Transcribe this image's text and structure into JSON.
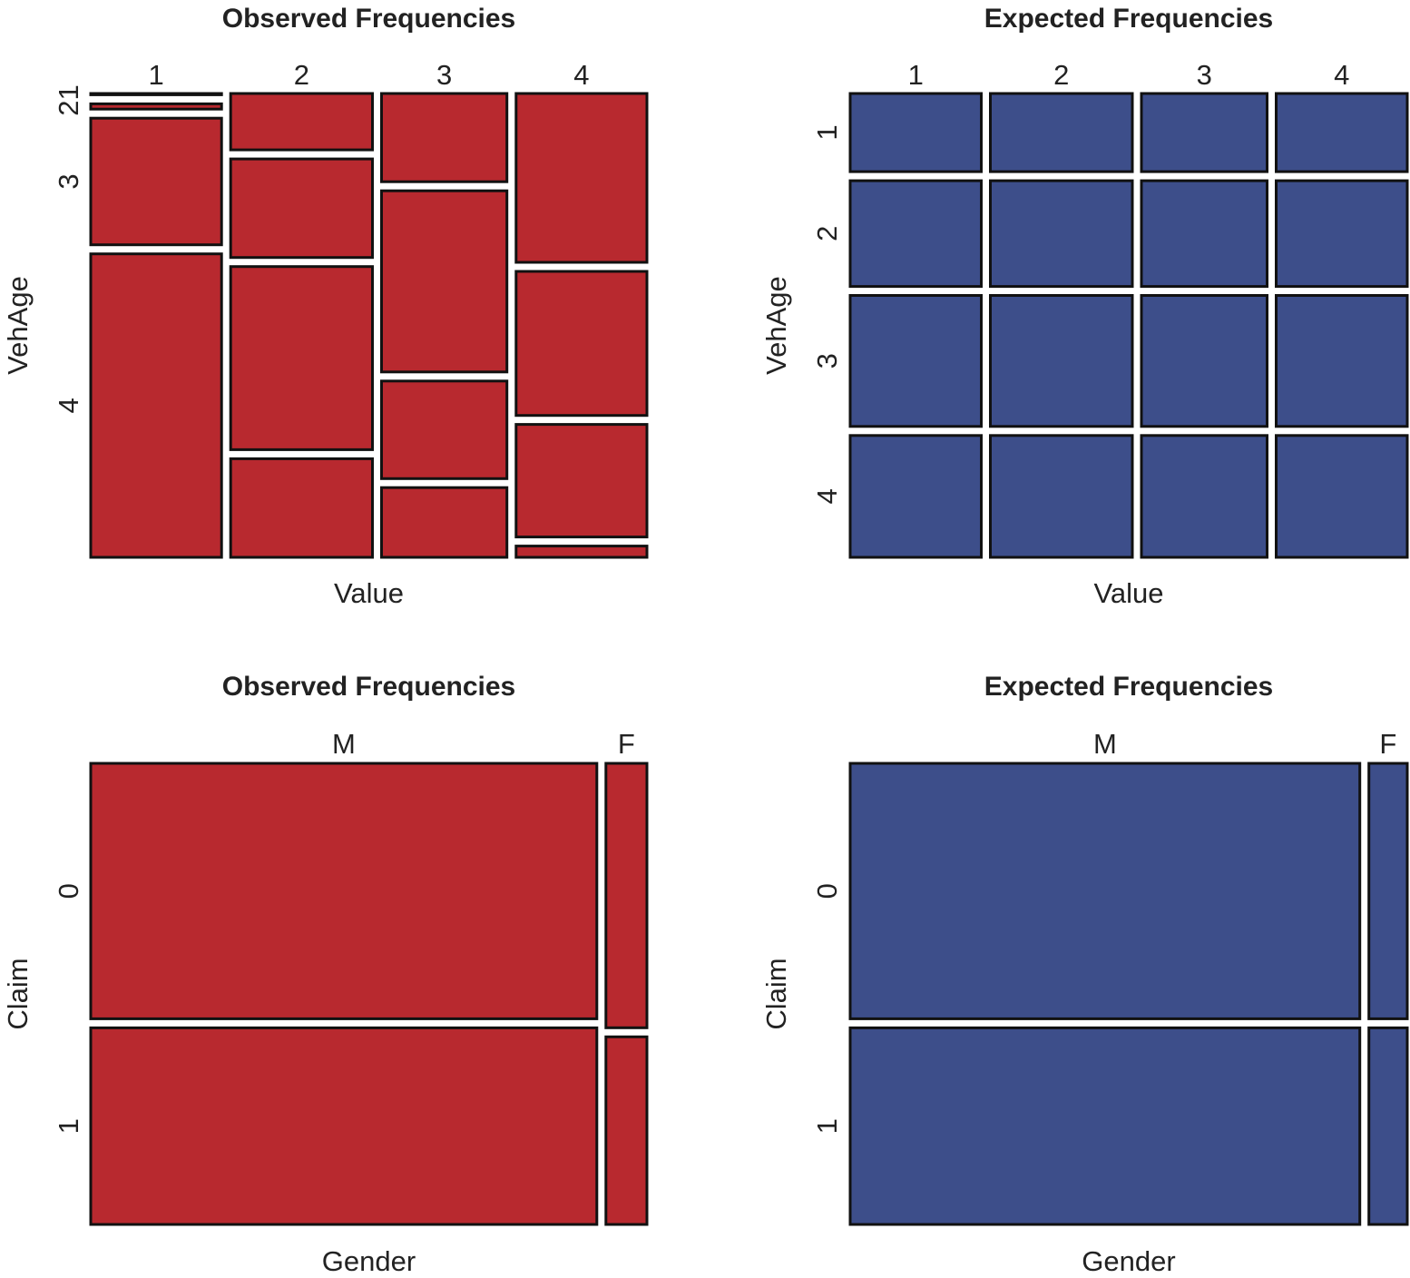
{
  "chart_data": [
    {
      "type": "mosaic",
      "title": "Observed Frequencies",
      "xlabel": "Value",
      "ylabel": "VehAge",
      "x_categories": [
        "1",
        "2",
        "3",
        "4"
      ],
      "y_categories": [
        "1",
        "2",
        "3",
        "4"
      ],
      "x_tick_labels": [
        "1",
        "2",
        "3",
        "4"
      ],
      "y_tick_labels": [
        "21",
        "3",
        "4"
      ],
      "x_proportions": [
        0.24,
        0.26,
        0.23,
        0.24
      ],
      "y_proportions_within_x": [
        [
          0.003,
          0.012,
          0.29,
          0.695
        ],
        [
          0.12,
          0.21,
          0.39,
          0.21
        ],
        [
          0.19,
          0.39,
          0.21,
          0.15
        ],
        [
          0.375,
          0.32,
          0.25,
          0.025
        ]
      ],
      "fill_color": "#b8292f"
    },
    {
      "type": "mosaic",
      "title": "Expected Frequencies",
      "xlabel": "Value",
      "ylabel": "VehAge",
      "x_categories": [
        "1",
        "2",
        "3",
        "4"
      ],
      "y_categories": [
        "1",
        "2",
        "3",
        "4"
      ],
      "x_tick_labels": [
        "1",
        "2",
        "3",
        "4"
      ],
      "y_tick_labels": [
        "1",
        "2",
        "3",
        "4"
      ],
      "x_proportions": [
        0.24,
        0.26,
        0.23,
        0.24
      ],
      "y_proportions_within_x": [
        [
          0.17,
          0.23,
          0.285,
          0.265
        ],
        [
          0.17,
          0.23,
          0.285,
          0.265
        ],
        [
          0.17,
          0.23,
          0.285,
          0.265
        ],
        [
          0.17,
          0.23,
          0.285,
          0.265
        ]
      ],
      "fill_color": "#3d4e8a"
    },
    {
      "type": "mosaic",
      "title": "Observed Frequencies",
      "xlabel": "Gender",
      "ylabel": "Claim",
      "x_categories": [
        "M",
        "F"
      ],
      "y_categories": [
        "0",
        "1"
      ],
      "x_tick_labels": [
        "M",
        "F"
      ],
      "y_tick_labels": [
        "0",
        "1"
      ],
      "x_proportions": [
        0.925,
        0.075
      ],
      "y_proportions_within_x": [
        [
          0.565,
          0.435
        ],
        [
          0.585,
          0.415
        ]
      ],
      "fill_color": "#b8292f"
    },
    {
      "type": "mosaic",
      "title": "Expected Frequencies",
      "xlabel": "Gender",
      "ylabel": "Claim",
      "x_categories": [
        "M",
        "F"
      ],
      "y_categories": [
        "0",
        "1"
      ],
      "x_tick_labels": [
        "M",
        "F"
      ],
      "y_tick_labels": [
        "0",
        "1"
      ],
      "x_proportions": [
        0.93,
        0.07
      ],
      "y_proportions_within_x": [
        [
          0.565,
          0.435
        ],
        [
          0.565,
          0.435
        ]
      ],
      "fill_color": "#3d4e8a"
    }
  ]
}
